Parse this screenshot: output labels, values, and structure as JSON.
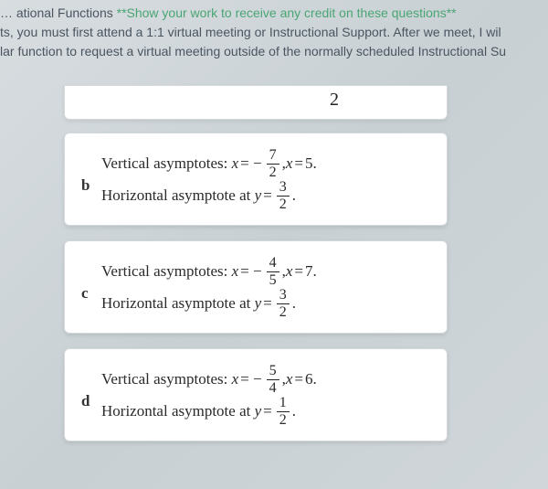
{
  "header": {
    "line1_prefix": "… ational Functions ",
    "line1_green": "**Show your work to receive any credit on these questions**",
    "line2": "ts, you must first attend a 1:1 virtual meeting or Instructional Support. After we meet, I wil",
    "line3": "lar function to request a virtual meeting outside of the normally scheduled Instructional Su"
  },
  "top_fragment_value": "2",
  "options": [
    {
      "letter": "b",
      "vert_label": "Vertical asymptotes:",
      "vert_var": "x",
      "vert_frac_n": "7",
      "vert_frac_d": "2",
      "vert_second_var": "x",
      "vert_second_val": "5",
      "horiz_label": "Horizontal asymptote at",
      "horiz_var": "y",
      "horiz_frac_n": "3",
      "horiz_frac_d": "2"
    },
    {
      "letter": "c",
      "vert_label": "Vertical asymptotes:",
      "vert_var": "x",
      "vert_frac_n": "4",
      "vert_frac_d": "5",
      "vert_second_var": "x",
      "vert_second_val": "7",
      "horiz_label": "Horizontal asymptote at",
      "horiz_var": "y",
      "horiz_frac_n": "3",
      "horiz_frac_d": "2"
    },
    {
      "letter": "d",
      "vert_label": "Vertical asymptotes:",
      "vert_var": "x",
      "vert_frac_n": "5",
      "vert_frac_d": "4",
      "vert_second_var": "x",
      "vert_second_val": "6",
      "horiz_label": "Horizontal asymptote at",
      "horiz_var": "y",
      "horiz_frac_n": "1",
      "horiz_frac_d": "2"
    }
  ]
}
